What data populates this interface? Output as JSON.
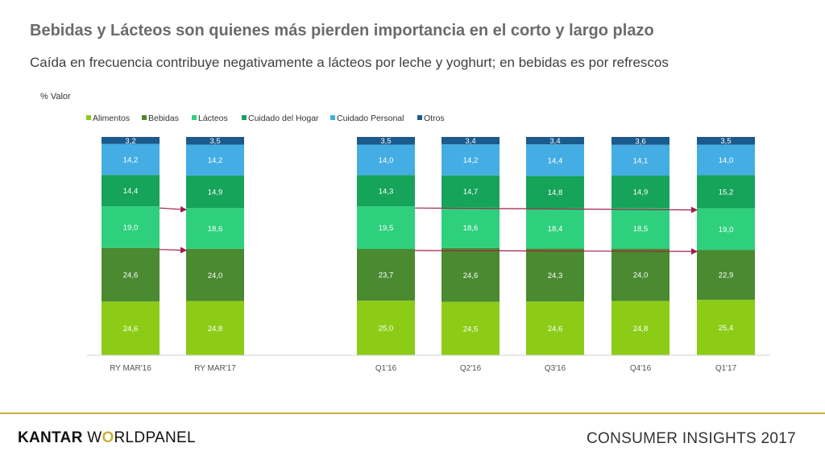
{
  "title": "Bebidas y Lácteos son quienes más pierden importancia en el corto y largo plazo",
  "subtitle": "Caída en frecuencia contribuye negativamente a lácteos por leche y yoghurt;  en bebidas es por refrescos",
  "footer": {
    "brand_part1": "KANTAR",
    "brand_part2_a": "W",
    "brand_part2_o": "O",
    "brand_part2_b": "RLDPANEL",
    "event": "CONSUMER INSIGHTS 2017"
  },
  "colors": {
    "Alimentos": "#8ccc17",
    "Bebidas": "#4a8a30",
    "Lácteos": "#2fd07d",
    "Cuidado del Hogar": "#16a35a",
    "Cuidado Personal": "#44aee4",
    "Otros": "#1b5a8c",
    "arrow": "#9e1f4a"
  },
  "chart_data": {
    "type": "bar",
    "stacked": true,
    "ylabel": "% Valor",
    "categories": [
      "RY MAR'16",
      "RY MAR'17",
      "Q1'16",
      "Q2'16",
      "Q3'16",
      "Q4'16",
      "Q1'17"
    ],
    "series": [
      {
        "name": "Alimentos",
        "values": [
          24.6,
          24.8,
          25.0,
          24.5,
          24.6,
          24.8,
          25.4
        ],
        "labels": [
          "24,6",
          "24,8",
          "25,0",
          "24,5",
          "24,6",
          "24,8",
          "25,4"
        ]
      },
      {
        "name": "Bebidas",
        "values": [
          24.6,
          24.0,
          23.7,
          24.6,
          24.3,
          24.0,
          22.9
        ],
        "labels": [
          "24,6",
          "24,0",
          "23,7",
          "24,6",
          "24,3",
          "24,0",
          "22,9"
        ]
      },
      {
        "name": "Lácteos",
        "values": [
          19.0,
          18.6,
          19.5,
          18.6,
          18.4,
          18.5,
          19.0
        ],
        "labels": [
          "19,0",
          "18,6",
          "19,5",
          "18,6",
          "18,4",
          "18,5",
          "19,0"
        ]
      },
      {
        "name": "Cuidado del Hogar",
        "values": [
          14.4,
          14.9,
          14.3,
          14.7,
          14.8,
          14.9,
          15.2
        ],
        "labels": [
          "14,4",
          "14,9",
          "14,3",
          "14,7",
          "14,8",
          "14,9",
          "15,2"
        ]
      },
      {
        "name": "Cuidado Personal",
        "values": [
          14.2,
          14.2,
          14.0,
          14.2,
          14.4,
          14.1,
          14.0
        ],
        "labels": [
          "14,2",
          "14,2",
          "14,0",
          "14,2",
          "14,4",
          "14,1",
          "14,0"
        ]
      },
      {
        "name": "Otros",
        "values": [
          3.2,
          3.5,
          3.5,
          3.4,
          3.4,
          3.6,
          3.5
        ],
        "labels": [
          "3,2",
          "3,5",
          "3,5",
          "3,4",
          "3,4",
          "3,6",
          "3,5"
        ]
      }
    ],
    "legend": [
      "Alimentos",
      "Bebidas",
      "Lácteos",
      "Cuidado del Hogar",
      "Cuidado Personal",
      "Otros"
    ],
    "legend_position": "top-left",
    "ylim": [
      0,
      100
    ],
    "trend_arrows": [
      {
        "from": 0,
        "to": 1,
        "series": "Lácteos"
      },
      {
        "from": 0,
        "to": 1,
        "series": "Bebidas"
      },
      {
        "from": 2,
        "to": 6,
        "series": "Lácteos"
      },
      {
        "from": 2,
        "to": 6,
        "series": "Bebidas"
      }
    ]
  }
}
